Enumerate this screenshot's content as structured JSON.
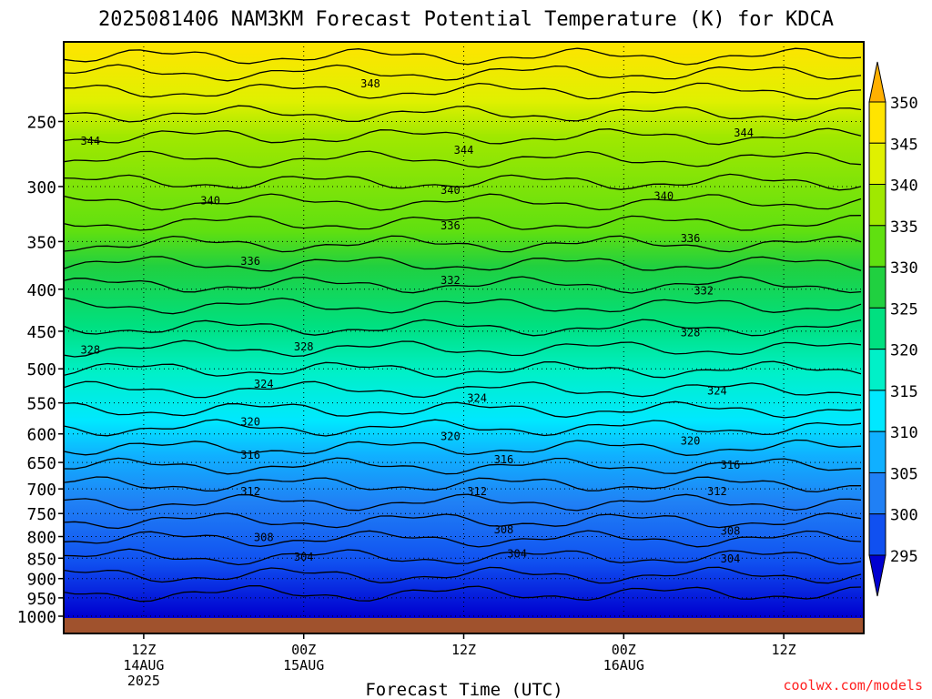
{
  "chart_data": {
    "type": "heatmap",
    "title": "2025081406 NAM3KM Forecast Potential Temperature (K) for KDCA",
    "xlabel": "Forecast Time (UTC)",
    "ylabel": "",
    "x_ticks": [
      {
        "label": "12Z",
        "sub": [
          "14AUG",
          "2025"
        ],
        "hour": 6
      },
      {
        "label": "00Z",
        "sub": [
          "15AUG"
        ],
        "hour": 18
      },
      {
        "label": "12Z",
        "sub": [],
        "hour": 30
      },
      {
        "label": "00Z",
        "sub": [
          "16AUG"
        ],
        "hour": 42
      },
      {
        "label": "12Z",
        "sub": [],
        "hour": 54
      }
    ],
    "xlim": [
      0,
      60
    ],
    "y_ticks": [
      250,
      300,
      350,
      400,
      450,
      500,
      550,
      600,
      650,
      700,
      750,
      800,
      850,
      900,
      950,
      1000
    ],
    "ylim": [
      1000,
      200
    ],
    "y_scale": "log-pressure",
    "colorbar": {
      "levels": [
        295,
        300,
        305,
        310,
        315,
        320,
        325,
        330,
        335,
        340,
        345,
        350
      ],
      "colors": [
        "#0000d0",
        "#1050f0",
        "#2080f5",
        "#10b0ff",
        "#00e8ff",
        "#00f0c8",
        "#00e080",
        "#20d040",
        "#60e010",
        "#a0e800",
        "#e0f000",
        "#ffe400",
        "#ffb000"
      ]
    },
    "contour_labels": [
      {
        "value": "348",
        "hour": 23,
        "p": 225
      },
      {
        "value": "344",
        "hour": 2,
        "p": 264
      },
      {
        "value": "344",
        "hour": 30,
        "p": 271
      },
      {
        "value": "344",
        "hour": 51,
        "p": 258
      },
      {
        "value": "340",
        "hour": 11,
        "p": 312
      },
      {
        "value": "340",
        "hour": 29,
        "p": 303
      },
      {
        "value": "340",
        "hour": 45,
        "p": 308
      },
      {
        "value": "336",
        "hour": 29,
        "p": 335
      },
      {
        "value": "336",
        "hour": 47,
        "p": 347
      },
      {
        "value": "336",
        "hour": 14,
        "p": 370
      },
      {
        "value": "332",
        "hour": 29,
        "p": 390
      },
      {
        "value": "332",
        "hour": 48,
        "p": 402
      },
      {
        "value": "328",
        "hour": 2,
        "p": 474
      },
      {
        "value": "328",
        "hour": 18,
        "p": 470
      },
      {
        "value": "328",
        "hour": 47,
        "p": 452
      },
      {
        "value": "324",
        "hour": 15,
        "p": 522
      },
      {
        "value": "324",
        "hour": 31,
        "p": 543
      },
      {
        "value": "324",
        "hour": 49,
        "p": 532
      },
      {
        "value": "320",
        "hour": 14,
        "p": 580
      },
      {
        "value": "320",
        "hour": 29,
        "p": 604
      },
      {
        "value": "320",
        "hour": 47,
        "p": 612
      },
      {
        "value": "316",
        "hour": 14,
        "p": 637
      },
      {
        "value": "316",
        "hour": 33,
        "p": 645
      },
      {
        "value": "316",
        "hour": 50,
        "p": 655
      },
      {
        "value": "312",
        "hour": 14,
        "p": 705
      },
      {
        "value": "312",
        "hour": 31,
        "p": 705
      },
      {
        "value": "312",
        "hour": 49,
        "p": 705
      },
      {
        "value": "308",
        "hour": 15,
        "p": 802
      },
      {
        "value": "308",
        "hour": 33,
        "p": 785
      },
      {
        "value": "308",
        "hour": 50,
        "p": 788
      },
      {
        "value": "304",
        "hour": 18,
        "p": 847
      },
      {
        "value": "304",
        "hour": 34,
        "p": 840
      },
      {
        "value": "304",
        "hour": 50,
        "p": 852
      }
    ]
  },
  "footer": {
    "credit": "coolwx.com/models"
  },
  "colors": {
    "terrain": "#a0522d",
    "credit": "#ff2020"
  }
}
